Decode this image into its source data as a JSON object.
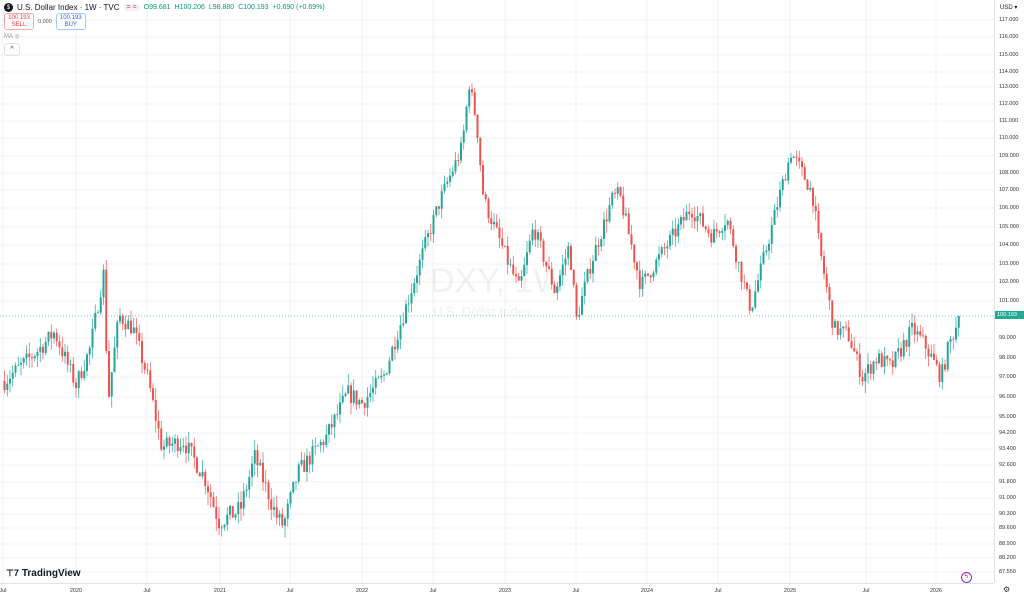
{
  "header": {
    "symbol_badge": "$",
    "title": "U.S. Dollar Index · 1W · TVC",
    "eq_label": "= =",
    "open": "O99.681",
    "high": "H100.206",
    "low": "L98.880",
    "close": "C100.193",
    "change": "+0.690 (+0.69%)"
  },
  "trade": {
    "sell_price": "100.193",
    "sell_label": "SELL",
    "spread": "0.000",
    "buy_price": "100.193",
    "buy_label": "BUY"
  },
  "indicator": {
    "ma_label": "MA",
    "collapse": "^"
  },
  "watermark": {
    "symbol": "DXY, 1W",
    "name": "U.S. Dollar Index"
  },
  "axis": {
    "currency": "USD ▾",
    "last_price": "100.193",
    "y_labels": [
      "117.000",
      "116.000",
      "115.000",
      "114.000",
      "113.000",
      "112.000",
      "111.000",
      "110.000",
      "109.000",
      "108.000",
      "107.000",
      "106.000",
      "105.000",
      "104.000",
      "103.000",
      "102.000",
      "101.000",
      "99.000",
      "98.000",
      "97.000",
      "96.000",
      "95.000",
      "94.200",
      "93.400",
      "92.600",
      "91.800",
      "91.000",
      "90.300",
      "89.600",
      "88.900",
      "88.200",
      "87.550"
    ],
    "x_labels": [
      "Jul",
      "2020",
      "Jul",
      "2021",
      "Jul",
      "2022",
      "Jul",
      "2023",
      "Jul",
      "2024",
      "Jul",
      "2025",
      "Jul",
      "2026"
    ]
  },
  "branding": {
    "logo": "TradingView"
  },
  "colors": {
    "up": "#26a69a",
    "down": "#ef5350",
    "last_line": "#22ab94"
  },
  "chart_data": {
    "type": "candlestick",
    "title": "U.S. Dollar Index (DXY), 1W",
    "ylabel": "USD",
    "ylim": [
      87.55,
      117.0
    ],
    "last_price": 100.193,
    "keypoints": [
      [
        2019.5,
        96.8
      ],
      [
        2019.75,
        98.5
      ],
      [
        2019.85,
        99.3
      ],
      [
        2020.0,
        96.6
      ],
      [
        2020.1,
        98.5
      ],
      [
        2020.2,
        102.8
      ],
      [
        2020.22,
        95.5
      ],
      [
        2020.3,
        100.2
      ],
      [
        2020.4,
        99.5
      ],
      [
        2020.5,
        97.0
      ],
      [
        2020.6,
        93.5
      ],
      [
        2020.75,
        93.8
      ],
      [
        2020.9,
        92.0
      ],
      [
        2021.0,
        89.9
      ],
      [
        2021.15,
        90.5
      ],
      [
        2021.25,
        93.0
      ],
      [
        2021.4,
        90.2
      ],
      [
        2021.45,
        89.7
      ],
      [
        2021.55,
        92.2
      ],
      [
        2021.75,
        94.0
      ],
      [
        2021.9,
        96.2
      ],
      [
        2022.0,
        95.7
      ],
      [
        2022.15,
        97.0
      ],
      [
        2022.3,
        100.5
      ],
      [
        2022.45,
        104.2
      ],
      [
        2022.55,
        106.5
      ],
      [
        2022.7,
        109.5
      ],
      [
        2022.75,
        113.2
      ],
      [
        2022.8,
        111.0
      ],
      [
        2022.85,
        106.5
      ],
      [
        2022.95,
        104.5
      ],
      [
        2023.0,
        103.5
      ],
      [
        2023.1,
        101.6
      ],
      [
        2023.2,
        105.0
      ],
      [
        2023.35,
        101.5
      ],
      [
        2023.45,
        104.0
      ],
      [
        2023.5,
        100.0
      ],
      [
        2023.6,
        103.0
      ],
      [
        2023.75,
        106.5
      ],
      [
        2023.8,
        106.8
      ],
      [
        2023.95,
        101.8
      ],
      [
        2024.05,
        103.0
      ],
      [
        2024.3,
        106.0
      ],
      [
        2024.45,
        104.5
      ],
      [
        2024.55,
        105.5
      ],
      [
        2024.7,
        101.0
      ],
      [
        2024.72,
        100.6
      ],
      [
        2024.85,
        104.5
      ],
      [
        2025.0,
        109.2
      ],
      [
        2025.05,
        108.5
      ],
      [
        2025.15,
        106.8
      ],
      [
        2025.2,
        103.8
      ],
      [
        2025.3,
        99.5
      ],
      [
        2025.4,
        99.2
      ],
      [
        2025.5,
        97.0
      ],
      [
        2025.6,
        98.0
      ],
      [
        2025.7,
        97.5
      ],
      [
        2025.85,
        99.5
      ],
      [
        2025.95,
        98.5
      ],
      [
        2026.05,
        97.0
      ],
      [
        2026.1,
        98.5
      ],
      [
        2026.18,
        100.19
      ]
    ]
  }
}
